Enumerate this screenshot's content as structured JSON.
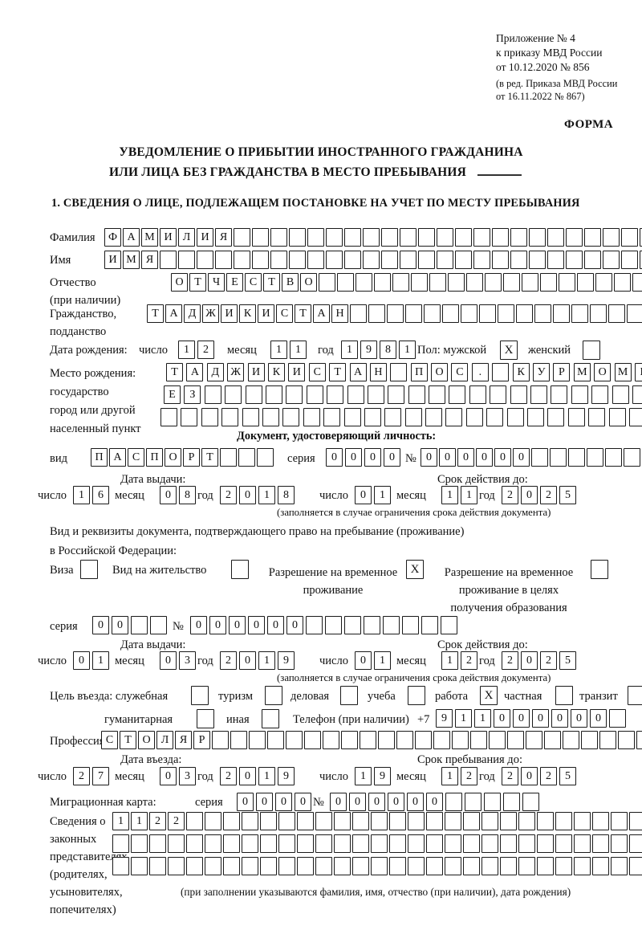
{
  "header": {
    "appendix_lines": [
      "Приложение № 4",
      "к приказу МВД России",
      "от 10.12.2020 № 856"
    ],
    "revision_lines": [
      "(в ред. Приказа МВД России",
      "от 16.11.2022 № 867)"
    ],
    "form_label": "ФОРМА"
  },
  "title": {
    "line1": "УВЕДОМЛЕНИЕ О ПРИБЫТИИ ИНОСТРАННОГО ГРАЖДАНИНА",
    "line2": "ИЛИ ЛИЦА БЕЗ ГРАЖДАНСТВА В МЕСТО ПРЕБЫВАНИЯ"
  },
  "section1_heading": "1. СВЕДЕНИЯ О ЛИЦЕ, ПОДЛЕЖАЩЕМ ПОСТАНОВКЕ НА УЧЕТ ПО МЕСТУ ПРЕБЫВАНИЯ",
  "labels": {
    "surname": "Фамилия",
    "name": "Имя",
    "patronymic1": "Отчество",
    "patronymic2": "(при наличии)",
    "citizenship1": "Гражданство,",
    "citizenship2": "подданство",
    "birth_date": "Дата рождения:",
    "day": "число",
    "month": "месяц",
    "year": "год",
    "sex_male": "Пол: мужской",
    "sex_female": "женский",
    "birth_place1": "Место рождения:",
    "birth_place2": "государство",
    "birth_place3": "город или другой",
    "birth_place4": "населенный пункт",
    "identity_doc_heading": "Документ, удостоверяющий личность:",
    "kind": "вид",
    "series": "серия",
    "number": "№",
    "issue_date": "Дата выдачи:",
    "valid_until": "Срок действия до:",
    "validity_note": "(заполняется в случае ограничения срока действия документа)",
    "resident_doc1": "Вид и реквизиты документа, подтверждающего право на пребывание (проживание)",
    "resident_doc2": "в Российской Федерации:",
    "visa": "Виза",
    "residence_permit": "Вид на жительство",
    "temp_residence": "Разрешение на временное проживание",
    "temp_residence_edu": "Разрешение на временное проживание в целях получения образования",
    "purpose": "Цель въезда: служебная",
    "tourism": "туризм",
    "commercial": "деловая",
    "study": "учеба",
    "work": "работа",
    "private": "частная",
    "transit": "транзит",
    "humanitarian": "гуманитарная",
    "other": "иная",
    "phone": "Телефон (при наличии)",
    "phone_prefix": "+7",
    "profession": "Профессия",
    "entry_date": "Дата въезда:",
    "stay_until": "Срок пребывания до:",
    "migration_card": "Миграционная карта:",
    "representatives_lines": [
      "Сведения о",
      "законных",
      "представителях",
      "(родителях,",
      "усыновителях,",
      "попечителях)"
    ],
    "representatives_note": "(при заполнении указываются фамилия, имя, отчество (при наличии), дата рождения)"
  },
  "fields": {
    "surname": {
      "v": "ФАМИЛИЯ",
      "n": 30
    },
    "name": {
      "v": "ИМЯ",
      "n": 30
    },
    "patronymic": {
      "v": "ОТЧЕСТВО",
      "n": 26
    },
    "citizenship": {
      "v": "ТАДЖИКИСТАН",
      "n": 27
    },
    "birth_day": {
      "v": "12",
      "n": 2
    },
    "birth_month": {
      "v": "11",
      "n": 2
    },
    "birth_year": {
      "v": "1981",
      "n": 4
    },
    "sex_male_check": "X",
    "sex_female_check": "",
    "birth_place_row1": {
      "v": "ТАДЖИКИСТАН ПОС. КУРМОМБ",
      "n": 24
    },
    "birth_place_row2": {
      "v": "ЕЗ",
      "n": 24
    },
    "birth_place_row3": {
      "v": "",
      "n": 24
    },
    "doc_kind": {
      "v": "ПАСПОРТ",
      "n": 10
    },
    "doc_series": {
      "v": "0000",
      "n": 4
    },
    "doc_number": {
      "v": "000000",
      "n": 12
    },
    "doc_issue_day": {
      "v": "16",
      "n": 2
    },
    "doc_issue_month": {
      "v": "08",
      "n": 2
    },
    "doc_issue_year": {
      "v": "2018",
      "n": 4
    },
    "doc_valid_day": {
      "v": "01",
      "n": 2
    },
    "doc_valid_month": {
      "v": "11",
      "n": 2
    },
    "doc_valid_year": {
      "v": "2025",
      "n": 4
    },
    "visa_check": "",
    "residence_permit_check": "",
    "temp_residence_check": "X",
    "temp_residence_edu_check": "",
    "res_series": {
      "v": "00",
      "n": 4
    },
    "res_number": {
      "v": "000000",
      "n": 14
    },
    "res_issue_day": {
      "v": "01",
      "n": 2
    },
    "res_issue_month": {
      "v": "03",
      "n": 2
    },
    "res_issue_year": {
      "v": "2019",
      "n": 4
    },
    "res_valid_day": {
      "v": "01",
      "n": 2
    },
    "res_valid_month": {
      "v": "12",
      "n": 2
    },
    "res_valid_year": {
      "v": "2025",
      "n": 4
    },
    "purpose_business_check": "",
    "purpose_tourism_check": "",
    "purpose_commercial_check": "",
    "purpose_study_check": "",
    "purpose_work_check": "X",
    "purpose_private_check": "",
    "purpose_transit_check": "",
    "purpose_humanitarian_check": "",
    "purpose_other_check": "",
    "phone": {
      "v": "911000000",
      "n": 10
    },
    "profession": {
      "v": "СТОЛЯР",
      "n": 30
    },
    "entry_day": {
      "v": "27",
      "n": 2
    },
    "entry_month": {
      "v": "03",
      "n": 2
    },
    "entry_year": {
      "v": "2019",
      "n": 4
    },
    "stay_day": {
      "v": "19",
      "n": 2
    },
    "stay_month": {
      "v": "12",
      "n": 2
    },
    "stay_year": {
      "v": "2025",
      "n": 4
    },
    "mig_series": {
      "v": "0000",
      "n": 4
    },
    "mig_number": {
      "v": "000000",
      "n": 11
    },
    "rep_row1": {
      "v": "1122",
      "n": 29
    },
    "rep_row2": {
      "v": "",
      "n": 29
    },
    "rep_row3": {
      "v": "",
      "n": 29
    }
  }
}
